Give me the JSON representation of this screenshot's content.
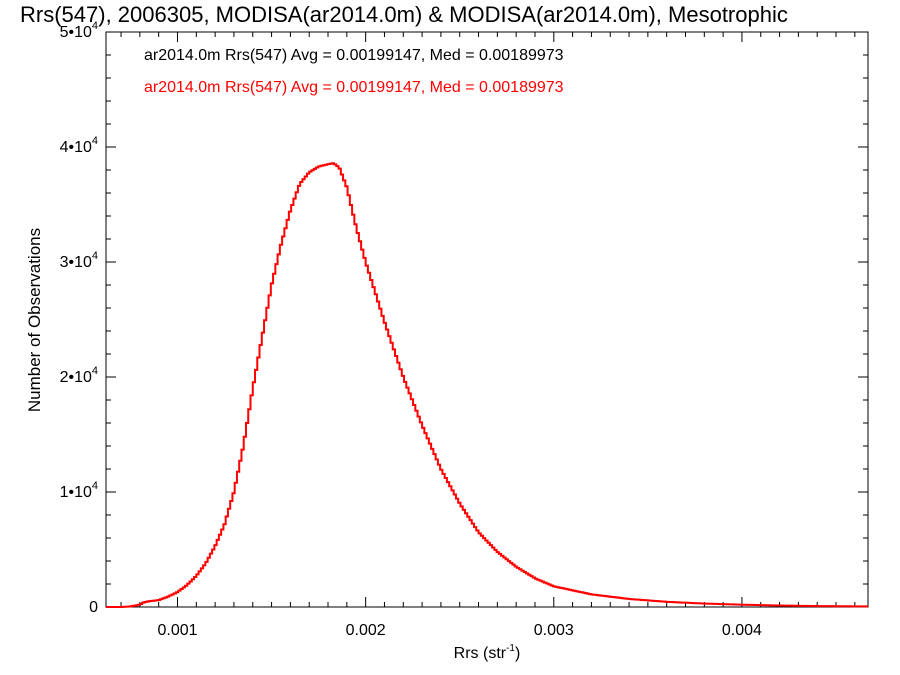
{
  "chart_data": {
    "type": "line",
    "title": "Rrs(547), 2006305, MODISA(ar2014.0m) & MODISA(ar2014.0m), Mesotrophic",
    "xlabel": "Rrs (str",
    "xlabel_sup": "-1",
    "xlabel_end": ")",
    "ylabel": "Number of Observations",
    "xlim": [
      0.00062,
      0.00467
    ],
    "ylim": [
      0,
      50000
    ],
    "x_ticks": [
      {
        "value": 0.001,
        "label": "0.001"
      },
      {
        "value": 0.002,
        "label": "0.002"
      },
      {
        "value": 0.003,
        "label": "0.003"
      },
      {
        "value": 0.004,
        "label": "0.004"
      }
    ],
    "y_ticks": [
      {
        "value": 0,
        "label": "0",
        "sup": ""
      },
      {
        "value": 10000,
        "label": "1•10",
        "sup": "4"
      },
      {
        "value": 20000,
        "label": "2•10",
        "sup": "4"
      },
      {
        "value": 30000,
        "label": "3•10",
        "sup": "4"
      },
      {
        "value": 40000,
        "label": "4•10",
        "sup": "4"
      },
      {
        "value": 50000,
        "label": "5•10",
        "sup": "4"
      }
    ],
    "grid": false,
    "legend": [
      {
        "text": "ar2014.0m Rrs(547) Avg = 0.00199147, Med = 0.00189973",
        "color": "#000000"
      },
      {
        "text": "ar2014.0m Rrs(547) Avg = 0.00199147, Med = 0.00189973",
        "color": "#ff0000"
      }
    ],
    "legend_position": "top-left",
    "series": [
      {
        "color": "#ff0000",
        "style": "step",
        "x": [
          0.00062,
          0.0007,
          0.00075,
          0.0008,
          0.00082,
          0.00085,
          0.0009,
          0.00095,
          0.001,
          0.00105,
          0.0011,
          0.00115,
          0.0012,
          0.00125,
          0.0013,
          0.00135,
          0.0014,
          0.00145,
          0.0015,
          0.00155,
          0.0016,
          0.00165,
          0.0017,
          0.00175,
          0.0018,
          0.00183,
          0.00186,
          0.0019,
          0.00195,
          0.002,
          0.0021,
          0.0022,
          0.0023,
          0.0024,
          0.0025,
          0.0026,
          0.0027,
          0.0028,
          0.0029,
          0.003,
          0.0032,
          0.0034,
          0.0036,
          0.0038,
          0.004,
          0.0042,
          0.0044,
          0.00467
        ],
        "y": [
          0,
          0,
          50,
          200,
          400,
          500,
          600,
          900,
          1300,
          1900,
          2700,
          3800,
          5300,
          7200,
          10000,
          14000,
          19000,
          23500,
          28000,
          31500,
          34500,
          36800,
          37800,
          38300,
          38500,
          38600,
          38200,
          36500,
          33000,
          30000,
          24800,
          20000,
          15800,
          12000,
          9000,
          6500,
          4800,
          3500,
          2500,
          1800,
          1100,
          700,
          450,
          300,
          200,
          130,
          80,
          50
        ]
      }
    ]
  }
}
